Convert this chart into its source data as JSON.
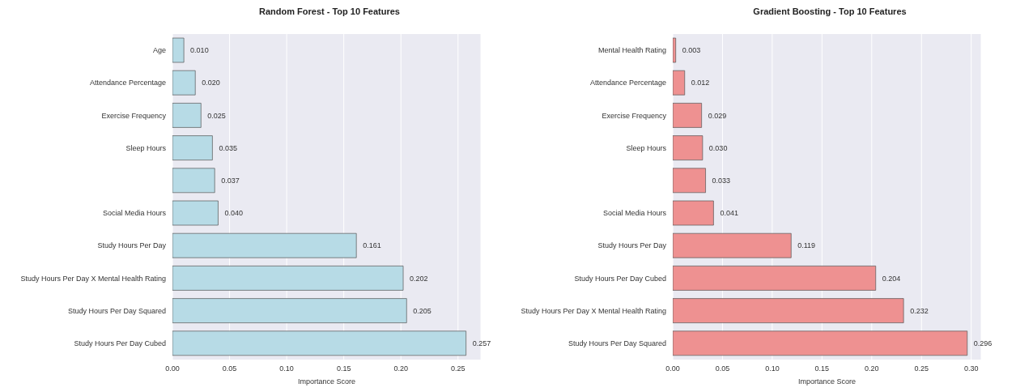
{
  "chart_data": [
    {
      "type": "bar",
      "orientation": "horizontal",
      "title": "Random Forest - Top 10 Features",
      "xlabel": "Importance Score",
      "categories": [
        "Age",
        "Attendance Percentage",
        "Exercise Frequency",
        "Sleep Hours",
        null,
        "Social Media Hours",
        "Study Hours Per Day",
        "Study Hours Per Day X Mental Health Rating",
        "Study Hours Per Day Squared",
        "Study Hours Per Day Cubed"
      ],
      "values": [
        0.01,
        0.02,
        0.025,
        0.035,
        0.037,
        0.04,
        0.161,
        0.202,
        0.205,
        0.257
      ],
      "value_labels": [
        "0.010",
        "0.020",
        "0.025",
        "0.035",
        "0.037",
        "0.040",
        "0.161",
        "0.202",
        "0.205",
        "0.257"
      ],
      "color": "#b7dbe6",
      "xlim": [
        0,
        0.27
      ],
      "xticks": [
        {
          "value": 0,
          "label": "0.00"
        },
        {
          "value": 0.05,
          "label": "0.05"
        },
        {
          "value": 0.1,
          "label": "0.10"
        },
        {
          "value": 0.15,
          "label": "0.15"
        },
        {
          "value": 0.2,
          "label": "0.20"
        },
        {
          "value": 0.25,
          "label": "0.25"
        }
      ],
      "grid": "x",
      "legend": false
    },
    {
      "type": "bar",
      "orientation": "horizontal",
      "title": "Gradient Boosting - Top 10 Features",
      "xlabel": "Importance Score",
      "categories": [
        "Mental Health Rating",
        "Attendance Percentage",
        "Exercise Frequency",
        "Sleep Hours",
        null,
        "Social Media Hours",
        "Study Hours Per Day",
        "Study Hours Per Day Cubed",
        "Study Hours Per Day X Mental Health Rating",
        "Study Hours Per Day Squared"
      ],
      "values": [
        0.003,
        0.012,
        0.029,
        0.03,
        0.033,
        0.041,
        0.119,
        0.204,
        0.232,
        0.296
      ],
      "value_labels": [
        "0.003",
        "0.012",
        "0.029",
        "0.030",
        "0.033",
        "0.041",
        "0.119",
        "0.204",
        "0.232",
        "0.296"
      ],
      "color": "#ee9191",
      "xlim": [
        0,
        0.31
      ],
      "xticks": [
        {
          "value": 0,
          "label": "0.00"
        },
        {
          "value": 0.05,
          "label": "0.05"
        },
        {
          "value": 0.1,
          "label": "0.10"
        },
        {
          "value": 0.15,
          "label": "0.15"
        },
        {
          "value": 0.2,
          "label": "0.20"
        },
        {
          "value": 0.25,
          "label": "0.25"
        },
        {
          "value": 0.3,
          "label": "0.30"
        }
      ],
      "grid": "x",
      "legend": false
    }
  ]
}
